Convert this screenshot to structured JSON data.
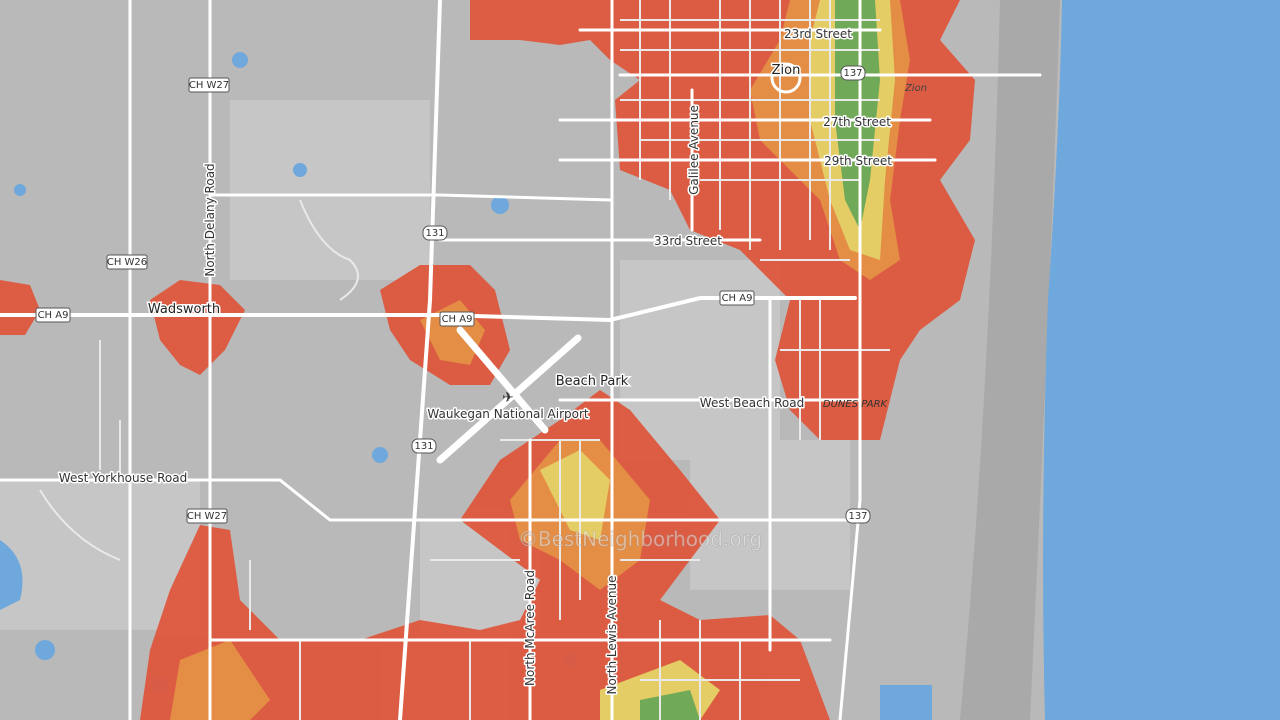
{
  "map": {
    "place_labels": [
      "Zion",
      "Wadsworth",
      "Beach Park",
      "Waukegan National Airport"
    ],
    "road_labels": [
      "23rd Street",
      "27th Street",
      "29th Street",
      "Galilee Avenue",
      "North Delany Road",
      "33rd Street",
      "West Beach Road",
      "West Yorkhouse Road",
      "North McAree Road",
      "North Lewis Avenue"
    ],
    "area_labels": [
      "Zion",
      "DUNES PARK"
    ],
    "shields": [
      "137",
      "CH W27",
      "131",
      "CH W26",
      "CH A9",
      "CH A9",
      "CH A9",
      "131",
      "CH W27",
      "137"
    ],
    "watermark": "©BestNeighborhood.org"
  }
}
